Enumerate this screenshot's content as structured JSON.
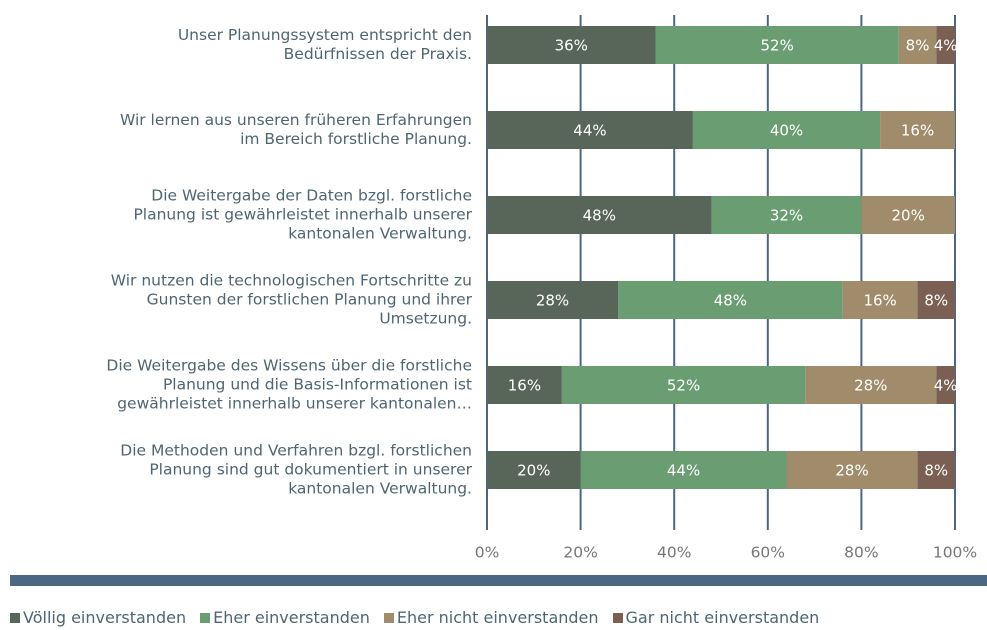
{
  "chart_data": {
    "type": "stacked_barh",
    "categories": [
      "Unser Planungssystem entspricht den\nBedürfnissen der Praxis.",
      "Wir lernen aus unseren früheren Erfahrungen\nim Bereich forstliche Planung.",
      "Die Weitergabe der Daten bzgl. forstliche\nPlanung ist gewährleistet innerhalb unserer\nkantonalen Verwaltung.",
      "Wir nutzen die technologischen Fortschritte zu\nGunsten der forstlichen Planung und ihrer\nUmsetzung.",
      "Die Weitergabe des Wissens über die forstliche\nPlanung und die Basis-Informationen ist\ngewährleistet innerhalb unserer kantonalen…",
      "Die Methoden und Verfahren bzgl. forstlichen\nPlanung sind gut dokumentiert in unserer\nkantonalen Verwaltung."
    ],
    "series": [
      {
        "name": "Völlig einverstanden",
        "color": "#58665a",
        "values": [
          36,
          44,
          48,
          28,
          16,
          20
        ],
        "value_labels": [
          "36%",
          "44%",
          "48%",
          "28%",
          "16%",
          "20%"
        ]
      },
      {
        "name": "Eher einverstanden",
        "color": "#6b9d73",
        "values": [
          52,
          40,
          32,
          48,
          52,
          44
        ],
        "value_labels": [
          "52%",
          "40%",
          "32%",
          "48%",
          "52%",
          "44%"
        ]
      },
      {
        "name": "Eher nicht einverstanden",
        "color": "#a08c6b",
        "values": [
          8,
          16,
          20,
          16,
          28,
          28
        ],
        "value_labels": [
          "8%",
          "16%",
          "20%",
          "16%",
          "28%",
          "28%"
        ]
      },
      {
        "name": "Gar nicht einverstanden",
        "color": "#7a5f52",
        "values": [
          4,
          null,
          null,
          8,
          4,
          8
        ],
        "value_labels": [
          "4%",
          null,
          null,
          "8%",
          "4%",
          "8%"
        ]
      }
    ],
    "xlim": [
      0,
      100
    ],
    "xticks": [
      {
        "value": 0,
        "label": "0%"
      },
      {
        "value": 20,
        "label": "20%"
      },
      {
        "value": 40,
        "label": "40%"
      },
      {
        "value": 60,
        "label": "60%"
      },
      {
        "value": 80,
        "label": "80%"
      },
      {
        "value": 100,
        "label": "100%"
      }
    ],
    "grid": true,
    "legend": "bottom"
  }
}
